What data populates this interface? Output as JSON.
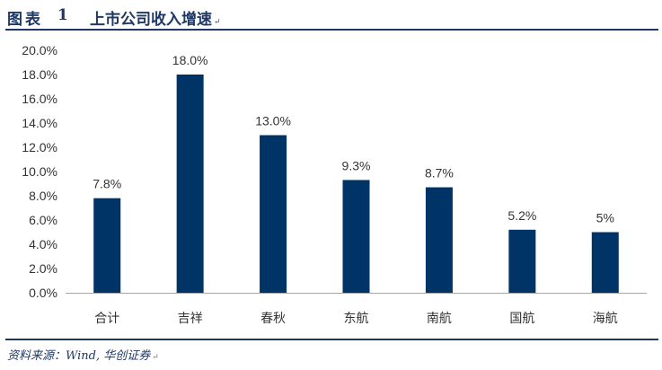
{
  "figure": {
    "label": "图表",
    "number": "1",
    "title": "上市公司收入增速",
    "source": "资料来源：Wind, 华创证券"
  },
  "colors": {
    "bar": "#003366",
    "rule": "#1f3864"
  },
  "chart_data": {
    "type": "bar",
    "categories": [
      "合计",
      "吉祥",
      "春秋",
      "东航",
      "南航",
      "国航",
      "海航"
    ],
    "values": [
      7.8,
      18.0,
      13.0,
      9.3,
      8.7,
      5.2,
      5.0
    ],
    "data_labels": [
      "7.8%",
      "18.0%",
      "13.0%",
      "9.3%",
      "8.7%",
      "5.2%",
      "5%"
    ],
    "y_ticks": [
      "0.0%",
      "2.0%",
      "4.0%",
      "6.0%",
      "8.0%",
      "10.0%",
      "12.0%",
      "14.0%",
      "16.0%",
      "18.0%",
      "20.0%"
    ],
    "ylim": [
      0,
      20
    ],
    "grid": false,
    "legend": "none"
  }
}
